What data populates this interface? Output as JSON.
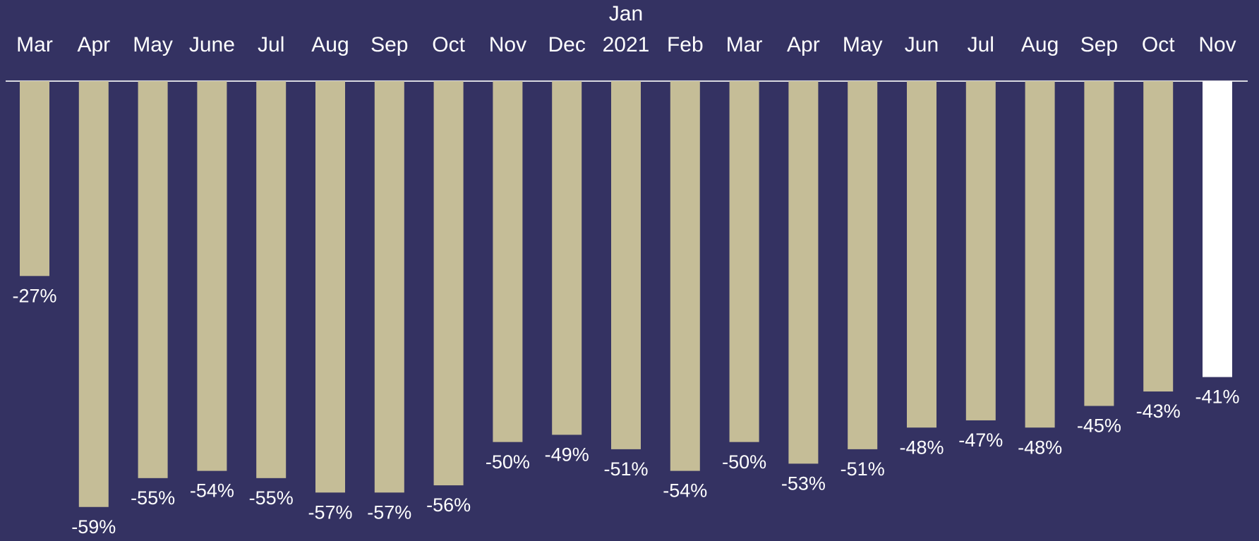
{
  "chart_data": {
    "type": "bar",
    "categories": [
      "Mar",
      "Apr",
      "May",
      "June",
      "Jul",
      "Aug",
      "Sep",
      "Oct",
      "Nov",
      "Dec",
      "Jan 2021",
      "Feb",
      "Mar",
      "Apr",
      "May",
      "Jun",
      "Jul",
      "Aug",
      "Sep",
      "Oct",
      "Nov"
    ],
    "values": [
      -27,
      -59,
      -55,
      -54,
      -55,
      -57,
      -57,
      -56,
      -50,
      -49,
      -51,
      -54,
      -50,
      -53,
      -51,
      -48,
      -47,
      -48,
      -45,
      -43,
      -41
    ],
    "value_labels": [
      "-27%",
      "-59%",
      "-55%",
      "-54%",
      "-55%",
      "-57%",
      "-57%",
      "-56%",
      "-50%",
      "-49%",
      "-51%",
      "-54%",
      "-50%",
      "-53%",
      "-51%",
      "-48%",
      "-47%",
      "-48%",
      "-45%",
      "-43%",
      "-41%"
    ],
    "colors": [
      "#c5bd97",
      "#c5bd97",
      "#c5bd97",
      "#c5bd97",
      "#c5bd97",
      "#c5bd97",
      "#c5bd97",
      "#c5bd97",
      "#c5bd97",
      "#c5bd97",
      "#c5bd97",
      "#c5bd97",
      "#c5bd97",
      "#c5bd97",
      "#c5bd97",
      "#c5bd97",
      "#c5bd97",
      "#c5bd97",
      "#c5bd97",
      "#c5bd97",
      "#ffffff"
    ],
    "ylim": [
      -60,
      0
    ]
  }
}
